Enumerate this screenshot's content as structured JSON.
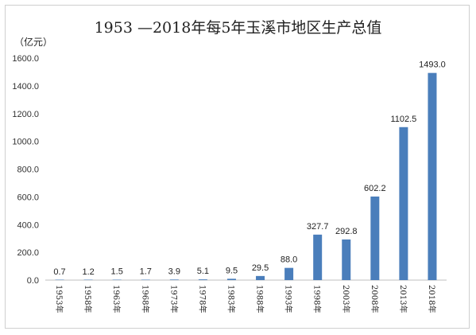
{
  "chart_data": {
    "type": "bar",
    "title": "1953 —2018年每5年玉溪市地区生产总值",
    "unit": "（亿元）",
    "xlabel": "",
    "ylabel": "",
    "ylim": [
      0,
      1600
    ],
    "yticks": [
      "0.0",
      "200.0",
      "400.0",
      "600.0",
      "800.0",
      "1000.0",
      "1200.0",
      "1400.0",
      "1600.0"
    ],
    "categories": [
      "1953年",
      "1958年",
      "1963年",
      "1968年",
      "1973年",
      "1978年",
      "1983年",
      "1988年",
      "1993年",
      "1998年",
      "2003年",
      "2008年",
      "2013年",
      "2018年"
    ],
    "values": [
      0.7,
      1.2,
      1.5,
      1.7,
      3.9,
      5.1,
      9.5,
      29.5,
      88.0,
      327.7,
      292.8,
      602.2,
      1102.5,
      1493.0
    ],
    "value_labels": [
      "0.7",
      "1.2",
      "1.5",
      "1.7",
      "3.9",
      "5.1",
      "9.5",
      "29.5",
      "88.0",
      "327.7",
      "292.8",
      "602.2",
      "1102.5",
      "1493.0"
    ],
    "bar_color": "#4a7ebb",
    "grid": false
  }
}
